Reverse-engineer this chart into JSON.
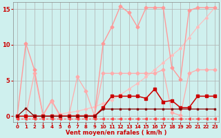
{
  "title": "",
  "xlabel": "Vent moyen/en rafales ( km/h )",
  "ylabel": "",
  "xlim": [
    -0.5,
    23.5
  ],
  "ylim": [
    -0.8,
    16
  ],
  "yticks": [
    0,
    5,
    10,
    15
  ],
  "xticks": [
    0,
    1,
    2,
    3,
    4,
    5,
    6,
    7,
    8,
    9,
    10,
    11,
    12,
    13,
    14,
    15,
    16,
    17,
    18,
    19,
    20,
    21,
    22,
    23
  ],
  "bg_color": "#cff0ee",
  "grid_color": "#b0b0b0",
  "series": [
    {
      "x": [
        0,
        1,
        2,
        3,
        4,
        5,
        6,
        7,
        8,
        9,
        10,
        11,
        12,
        13,
        14,
        15,
        16,
        17,
        18,
        19,
        20,
        21,
        22,
        23
      ],
      "y": [
        0,
        10.2,
        6.5,
        0.2,
        2.2,
        0.1,
        0.1,
        0.1,
        0.1,
        0.1,
        10.2,
        12.5,
        15.4,
        14.5,
        12.5,
        15.2,
        15.2,
        15.2,
        6.8,
        5.2,
        14.8,
        15.2,
        15.2,
        15.2
      ],
      "color": "#ff9999",
      "marker": "D",
      "markersize": 2.5,
      "linewidth": 1.0,
      "linestyle": "-",
      "zorder": 3
    },
    {
      "x": [
        0,
        1,
        2,
        3,
        4,
        5,
        6,
        7,
        8,
        9,
        10,
        11,
        12,
        13,
        14,
        15,
        16,
        17,
        18,
        19,
        20,
        21,
        22,
        23
      ],
      "y": [
        0.0,
        0.0,
        0.0,
        0.0,
        0.1,
        0.3,
        0.5,
        0.7,
        1.0,
        1.3,
        1.8,
        2.3,
        3.0,
        3.8,
        4.6,
        5.5,
        6.5,
        7.5,
        8.5,
        9.5,
        11.0,
        12.5,
        13.8,
        15.2
      ],
      "color": "#ffbbbb",
      "marker": "D",
      "markersize": 2.0,
      "linewidth": 0.8,
      "linestyle": "-",
      "zorder": 2
    },
    {
      "x": [
        0,
        1,
        2,
        3,
        4,
        5,
        6,
        7,
        8,
        9,
        10,
        11,
        12,
        13,
        14,
        15,
        16,
        17,
        18,
        19,
        20,
        21,
        22,
        23
      ],
      "y": [
        0.0,
        0.0,
        6.0,
        0.1,
        2.1,
        0.0,
        0.0,
        5.5,
        3.5,
        0.0,
        6.0,
        6.0,
        6.0,
        6.0,
        6.0,
        6.0,
        6.0,
        6.5,
        0.5,
        0.1,
        6.0,
        6.5,
        6.5,
        6.5
      ],
      "color": "#ffaaaa",
      "marker": "D",
      "markersize": 2.5,
      "linewidth": 0.9,
      "linestyle": "-",
      "zorder": 3
    },
    {
      "x": [
        0,
        1,
        2,
        3,
        4,
        5,
        6,
        7,
        8,
        9,
        10,
        11,
        12,
        13,
        14,
        15,
        16,
        17,
        18,
        19,
        20,
        21,
        22,
        23
      ],
      "y": [
        0,
        0.0,
        0.0,
        0.0,
        0.0,
        0.0,
        0.0,
        0.0,
        0.0,
        0.0,
        1.2,
        2.8,
        2.8,
        2.8,
        2.8,
        2.5,
        3.8,
        2.0,
        2.2,
        1.2,
        1.2,
        2.8,
        2.8,
        2.8
      ],
      "color": "#cc0000",
      "marker": "s",
      "markersize": 2.5,
      "linewidth": 1.1,
      "linestyle": "-",
      "zorder": 4
    },
    {
      "x": [
        0,
        1,
        2,
        3,
        4,
        5,
        6,
        7,
        8,
        9,
        10,
        11,
        12,
        13,
        14,
        15,
        16,
        17,
        18,
        19,
        20,
        21,
        22,
        23
      ],
      "y": [
        0,
        1.1,
        0.0,
        0.0,
        0.0,
        0.0,
        0.0,
        0.0,
        0.0,
        0.0,
        1.0,
        1.0,
        1.0,
        1.0,
        1.0,
        1.0,
        1.0,
        1.0,
        1.0,
        1.0,
        1.0,
        1.0,
        1.0,
        1.0
      ],
      "color": "#880000",
      "marker": "s",
      "markersize": 2.0,
      "linewidth": 0.9,
      "linestyle": "-",
      "zorder": 4
    },
    {
      "x": [
        0,
        1,
        2,
        3,
        4,
        5,
        6,
        7,
        8,
        9,
        10,
        11,
        12,
        13,
        14,
        15,
        16,
        17,
        18,
        19,
        20,
        21,
        22,
        23
      ],
      "y": [
        -0.35,
        -0.35,
        -0.35,
        -0.35,
        -0.35,
        -0.35,
        -0.35,
        -0.35,
        -0.35,
        -0.35,
        -0.35,
        -0.35,
        -0.35,
        -0.35,
        -0.35,
        -0.35,
        -0.35,
        -0.35,
        -0.35,
        -0.35,
        -0.35,
        -0.35,
        -0.35,
        -0.35
      ],
      "color": "#ff4444",
      "marker": "<",
      "markersize": 2.5,
      "linewidth": 0.7,
      "linestyle": "--",
      "zorder": 2
    }
  ]
}
